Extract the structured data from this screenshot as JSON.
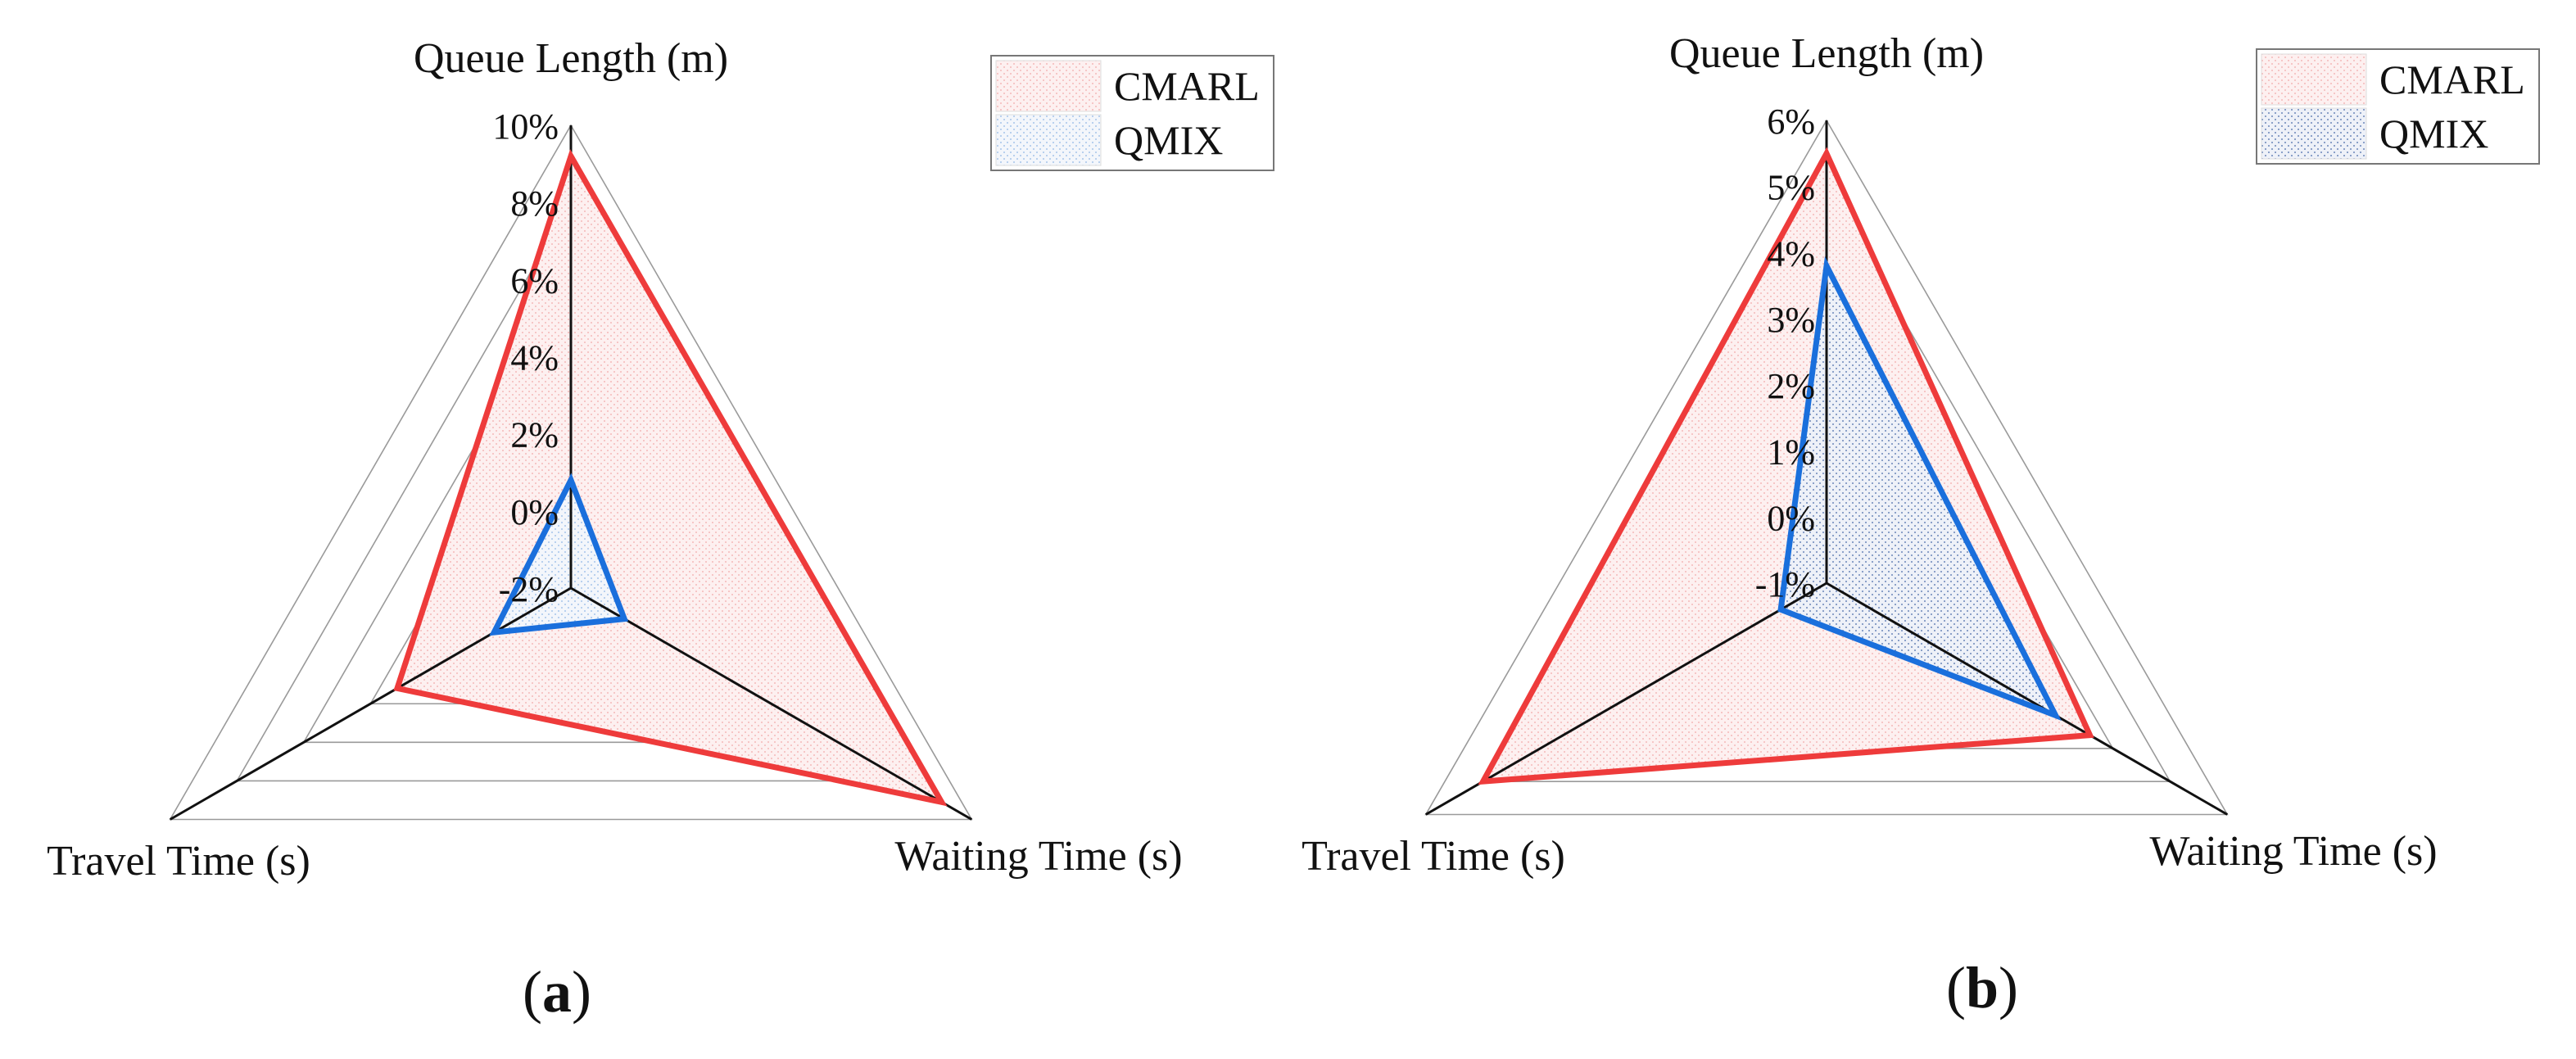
{
  "chart_data": [
    {
      "type": "radar",
      "panel_label": "(a)",
      "axes": [
        "Queue Length (m)",
        "Waiting Time (s)",
        "Travel Time (s)"
      ],
      "ticks": [
        -2,
        0,
        2,
        4,
        6,
        8,
        10
      ],
      "tick_labels": [
        "-2%",
        "0%",
        "2%",
        "4%",
        "6%",
        "8%",
        "10%"
      ],
      "range": [
        -2,
        10
      ],
      "grid": true,
      "legend": "top-right",
      "series": [
        {
          "name": "CMARL",
          "color": "#ee3b3b",
          "values": [
            9.2,
            9.1,
            3.2
          ]
        },
        {
          "name": "QMIX",
          "color": "#1a6fdc",
          "values": [
            0.8,
            -0.4,
            0.3
          ]
        }
      ]
    },
    {
      "type": "radar",
      "panel_label": "(b)",
      "axes": [
        "Queue Length (m)",
        "Waiting Time (s)",
        "Travel Time (s)"
      ],
      "ticks": [
        -1,
        0,
        1,
        2,
        3,
        4,
        5,
        6
      ],
      "tick_labels": [
        "-1%",
        "0%",
        "1%",
        "2%",
        "3%",
        "4%",
        "5%",
        "6%"
      ],
      "range": [
        -1,
        6
      ],
      "grid": true,
      "legend": "top-right",
      "series": [
        {
          "name": "CMARL",
          "color": "#ee3b3b",
          "values": [
            5.5,
            3.6,
            5.0
          ]
        },
        {
          "name": "QMIX",
          "color": "#1a6fdc",
          "values": [
            3.8,
            3.0,
            -0.2
          ]
        }
      ]
    }
  ]
}
